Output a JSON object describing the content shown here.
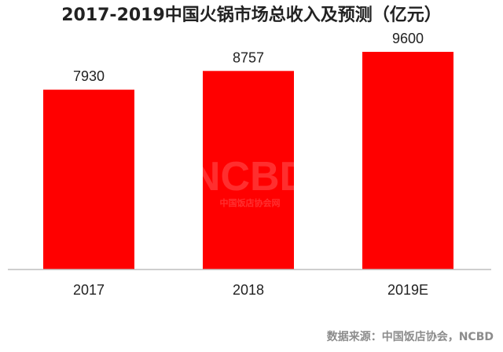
{
  "chart_data": {
    "type": "bar",
    "title": "2017-2019中国火锅市场总收入及预测（亿元）",
    "categories": [
      "2017",
      "2018",
      "2019E"
    ],
    "values": [
      7930,
      8757,
      9600
    ],
    "xlabel": "",
    "ylabel": "",
    "ylim": [
      0,
      10500
    ],
    "grid": false,
    "legend": "none",
    "bar_color": "#ff0000",
    "axis_color": "#bfbfbf"
  },
  "source": "数据来源：中国饭店协会，NCBD",
  "watermark": {
    "logo_text": "NCBD",
    "caption": "中国饭店协会网"
  }
}
